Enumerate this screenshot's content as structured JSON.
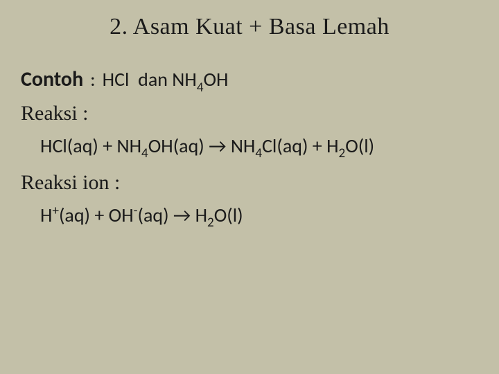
{
  "colors": {
    "background": "#c3c0a8",
    "text": "#1a1a1a"
  },
  "typography": {
    "title_font": "Palatino / Georgia serif",
    "title_size_pt": 26,
    "body_sans_font": "Segoe UI / Calibri",
    "body_size_pt": 21,
    "label_serif_font": "Georgia"
  },
  "title": "2. Asam Kuat + Basa Lemah",
  "contoh": {
    "label": "Contoh",
    "colon": " : ",
    "text": "HCl  dan NH₄OH",
    "text_raw": "HCl dan NH4OH"
  },
  "reaksi": {
    "label": "Reaksi :",
    "equation_parts": {
      "lhs1": "HCl(aq)",
      "plus": " + ",
      "lhs2_pre": "NH",
      "lhs2_sub": "4",
      "lhs2_post": "OH(aq)",
      "arrow": " → ",
      "rhs1_pre": "NH",
      "rhs1_sub": "4",
      "rhs1_post": "Cl(aq)",
      "rhs2_pre": "H",
      "rhs2_sub": "2",
      "rhs2_post": "O(l)"
    }
  },
  "reaksi_ion": {
    "label": "Reaksi ion :",
    "equation_parts": {
      "h": "H",
      "h_sup": "+",
      "h_state": "(aq)",
      "plus": " + ",
      "oh": "OH",
      "oh_sup": "-",
      "oh_state": "(aq)",
      "arrow": " →  ",
      "h2o_pre": "H",
      "h2o_sub": "2",
      "h2o_post": "O(l)"
    }
  }
}
